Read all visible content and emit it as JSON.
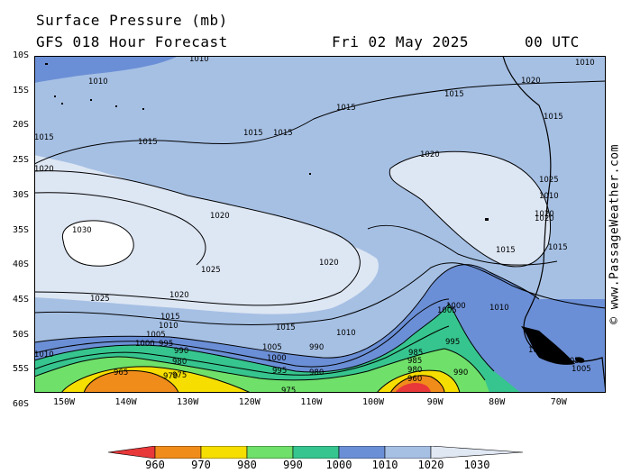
{
  "header": {
    "title": "Surface Pressure (mb)",
    "model": "GFS 018 Hour Forecast",
    "date": "Fri 02 May 2025",
    "time": "00 UTC"
  },
  "credit": "© www.PassageWeather.com",
  "lat_labels": [
    "10S",
    "15S",
    "20S",
    "25S",
    "30S",
    "35S",
    "40S",
    "45S",
    "50S",
    "55S",
    "60S"
  ],
  "lon_labels": [
    "150W",
    "140W",
    "130W",
    "120W",
    "110W",
    "100W",
    "90W",
    "80W",
    "70W"
  ],
  "colorbar": {
    "labels": [
      "960",
      "970",
      "980",
      "990",
      "1000",
      "1010",
      "1020",
      "1030"
    ],
    "colors": [
      "#e8383a",
      "#f08c1a",
      "#f5de00",
      "#6fe06a",
      "#36c58e",
      "#6b8fd6",
      "#a6c0e4",
      "#e0e8f4"
    ]
  },
  "fills": {
    "bg": "#a6c0e4",
    "c1020": "#dde6f3",
    "c1030": "#ffffff",
    "c1010": "#6b8fd6",
    "c1000": "#36c58e",
    "c990": "#6fe06a",
    "c980": "#f5de00",
    "c970": "#f08c1a",
    "c960": "#e8383a",
    "land": "#000000"
  },
  "contour_labels": [
    {
      "t": "1010",
      "lon": "1010"
    },
    {
      "t": "1010",
      "lon": "1010"
    },
    {
      "t": "1015",
      "lon": "1015"
    },
    {
      "t": "1015",
      "lon": "1015"
    },
    {
      "t": "1015",
      "lon": "1015"
    },
    {
      "t": "1015",
      "lon": "1015"
    },
    {
      "t": "1015",
      "lon": "1015"
    },
    {
      "t": "1020",
      "lon": "1020"
    },
    {
      "t": "1030",
      "lon": "1030"
    },
    {
      "t": "1020",
      "lon": "1020"
    },
    {
      "t": "1025",
      "lon": "1025"
    },
    {
      "t": "1025",
      "lon": "1025"
    },
    {
      "t": "1020",
      "lon": "1020"
    },
    {
      "t": "1015",
      "lon": "1015"
    },
    {
      "t": "1010",
      "lon": "1010"
    },
    {
      "t": "1020",
      "lon": "1020"
    },
    {
      "t": "1015",
      "lon": "1015"
    },
    {
      "t": "1010",
      "lon": "1010"
    },
    {
      "t": "1005",
      "lon": "1005"
    },
    {
      "t": "1000",
      "lon": "1000"
    },
    {
      "t": "995",
      "lon": "995"
    },
    {
      "t": "990",
      "lon": "990"
    },
    {
      "t": "980",
      "lon": "980"
    },
    {
      "t": "975",
      "lon": "975"
    },
    {
      "t": "965",
      "lon": "965"
    },
    {
      "t": "970",
      "lon": "970"
    },
    {
      "t": "985",
      "lon": "985"
    },
    {
      "t": "980",
      "lon": "980"
    },
    {
      "t": "975",
      "lon": "975"
    },
    {
      "t": "1005",
      "lon": "1005"
    },
    {
      "t": "1000",
      "lon": "1000"
    },
    {
      "t": "995",
      "lon": "995"
    },
    {
      "t": "990",
      "lon": "990"
    },
    {
      "t": "1020",
      "lon": "1020"
    },
    {
      "t": "1015",
      "lon": "1015"
    },
    {
      "t": "1005",
      "lon": "1005"
    },
    {
      "t": "1000",
      "lon": "1000"
    },
    {
      "t": "1010",
      "lon": "1010"
    },
    {
      "t": "995",
      "lon": "995"
    },
    {
      "t": "990",
      "lon": "990"
    },
    {
      "t": "985",
      "lon": "985"
    },
    {
      "t": "980",
      "lon": "980"
    },
    {
      "t": "960",
      "lon": "960"
    },
    {
      "t": "1010",
      "lon": "1010"
    },
    {
      "t": "1005",
      "lon": "1005"
    },
    {
      "t": "1005",
      "lon": "1005"
    },
    {
      "t": "1005",
      "lon": "1005"
    },
    {
      "t": "1015",
      "lon": "1015"
    },
    {
      "t": "1020",
      "lon": "1020"
    },
    {
      "t": "1025",
      "lon": "1025"
    },
    {
      "t": "1010",
      "lon": "1010"
    },
    {
      "t": "1010",
      "lon": "1010"
    },
    {
      "t": "1015",
      "lon": "1015"
    },
    {
      "t": "1020",
      "lon": "1020"
    },
    {
      "t": "1015",
      "lon": "1015"
    },
    {
      "t": "1020",
      "lon": "1020"
    }
  ]
}
